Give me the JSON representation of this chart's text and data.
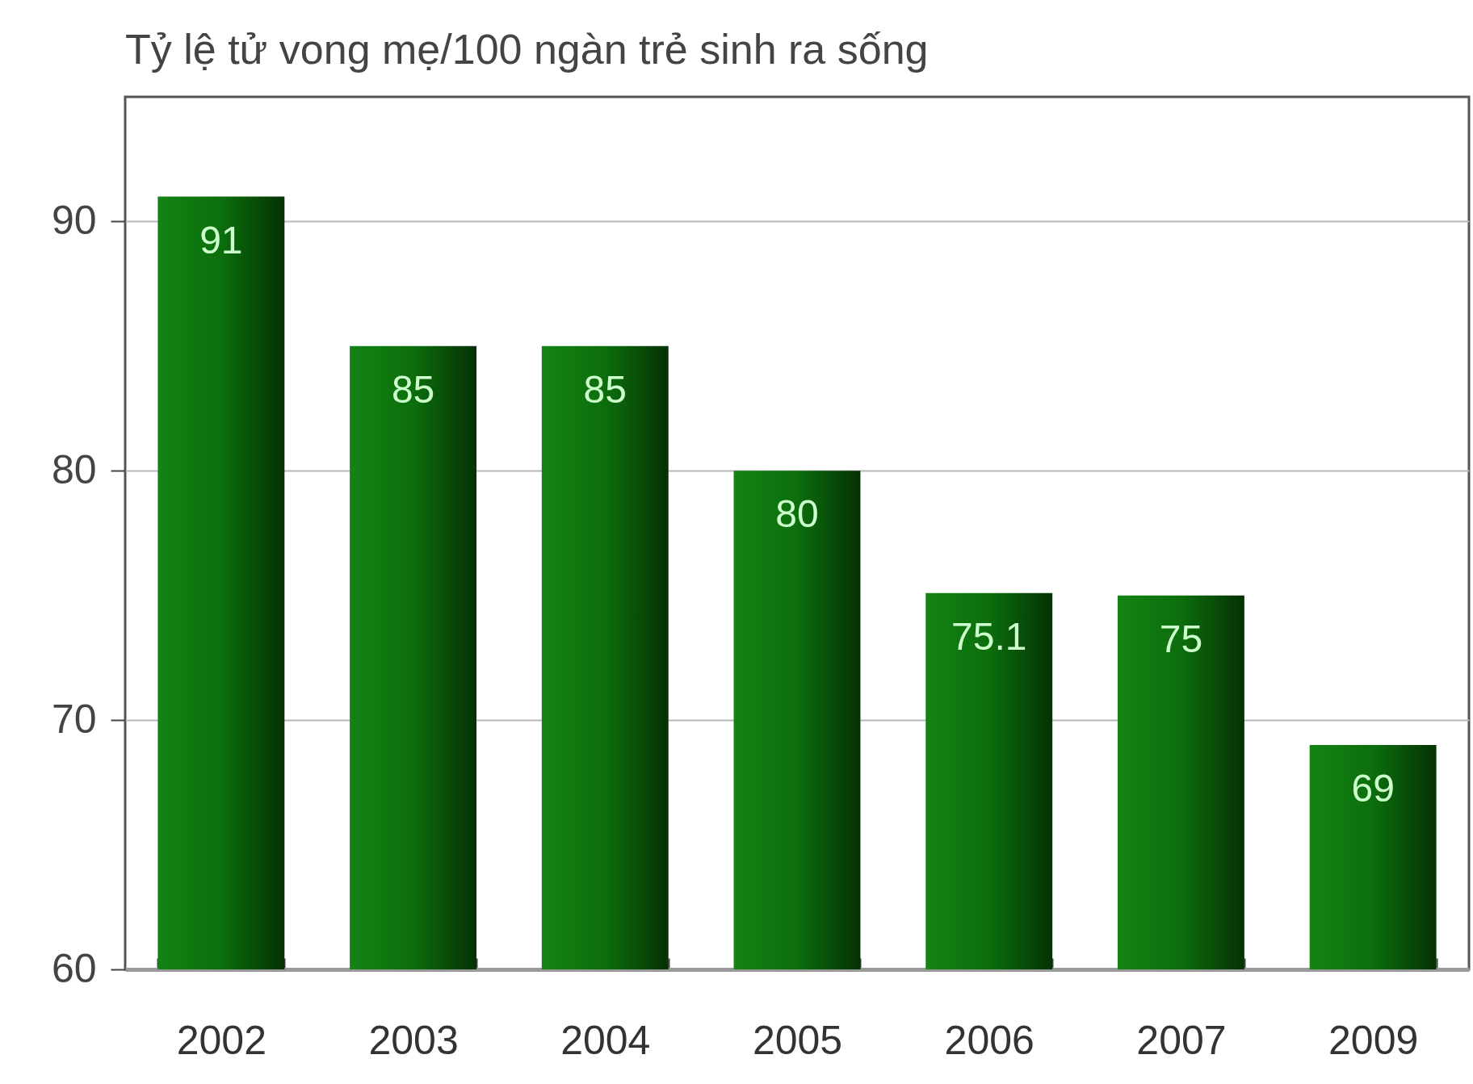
{
  "chart_data": {
    "type": "bar",
    "title": "Tỷ lệ tử vong mẹ/100 ngàn trẻ sinh ra sống",
    "categories": [
      "2002",
      "2003",
      "2004",
      "2005",
      "2006",
      "2007",
      "2009"
    ],
    "values": [
      91,
      85,
      85,
      80,
      75.1,
      75,
      69
    ],
    "color": "#0c6e0c",
    "ylim": [
      60,
      95
    ],
    "yticks": [
      60,
      70,
      80,
      90
    ],
    "grid": "y",
    "data_labels": true
  }
}
